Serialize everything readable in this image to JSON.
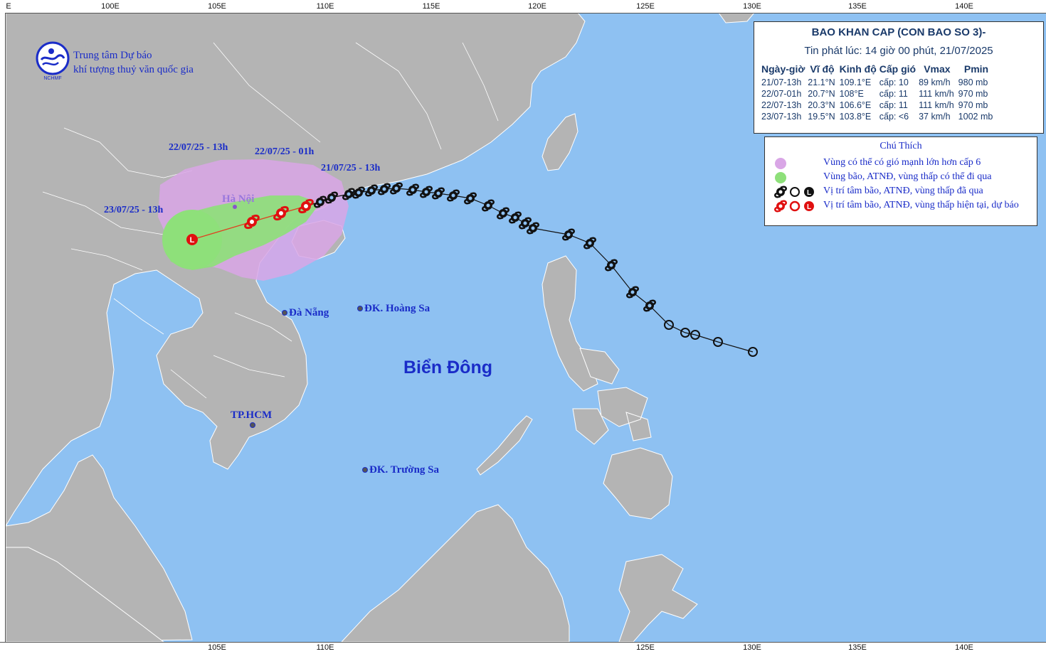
{
  "header": {
    "org_line1": "Trung tâm Dự báo",
    "org_line2": "khí tượng thuỷ văn quốc gia",
    "logo_text": "NCHMF"
  },
  "axes": {
    "top_ticks": [
      "100E",
      "105E",
      "110E",
      "115E",
      "120E",
      "125E",
      "130E",
      "135E",
      "140E"
    ],
    "bottom_ticks": [
      "105E",
      "110E",
      "125E",
      "130E",
      "135E",
      "140E"
    ],
    "corner_label": "E"
  },
  "bulletin": {
    "title": "BAO KHAN CAP (CON BAO SO 3)-",
    "issued": "Tin phát lúc: 14 giờ 00 phút, 21/07/2025",
    "columns": [
      "Ngày-giờ",
      "Vĩ độ",
      "Kinh độ",
      "Cấp gió",
      "Vmax",
      "Pmin"
    ],
    "rows": [
      [
        "21/07-13h",
        "21.1°N",
        "109.1°E",
        "cấp: 10",
        "89 km/h",
        "980 mb"
      ],
      [
        "22/07-01h",
        "20.7°N",
        "108°E",
        "cấp: 11",
        "111 km/h",
        "970 mb"
      ],
      [
        "22/07-13h",
        "20.3°N",
        "106.6°E",
        "cấp: 11",
        "111 km/h",
        "970 mb"
      ],
      [
        "23/07-13h",
        "19.5°N",
        "103.8°E",
        "cấp: <6",
        "37 km/h",
        "1002 mb"
      ]
    ]
  },
  "legend": {
    "title": "Chú Thích",
    "items": [
      "Vùng có thể có gió mạnh lớn hơn cấp 6",
      "Vùng bão, ATNĐ, vùng thấp có thể đi qua",
      "Vị trí tâm bão, ATNĐ, vùng thấp đã qua",
      "Vị trí tâm bão, ATNĐ, vùng thấp hiện tại, dự báo"
    ]
  },
  "forecast_labels": {
    "current": "21/07/25 - 13h",
    "plus12": "22/07/25 - 01h",
    "plus24": "22/07/25 - 13h",
    "plus48": "23/07/25 - 13h"
  },
  "places": {
    "hanoi": "Hà Nội",
    "danang": "Đà Nẵng",
    "hoangsa": "ĐK. Hoàng Sa",
    "truongsa": "ĐK. Trường Sa",
    "hcm": "TP.HCM",
    "sea": "Biển Đông"
  },
  "colors": {
    "sea": "#8ec1f2",
    "land": "#b4b4b4",
    "strong_wind_zone": "#d9a6e6",
    "danger_zone": "#8ee07a",
    "forecast_symbol": "#e01010",
    "past_symbol": "#111111",
    "label_blue": "#1a2cc8"
  }
}
